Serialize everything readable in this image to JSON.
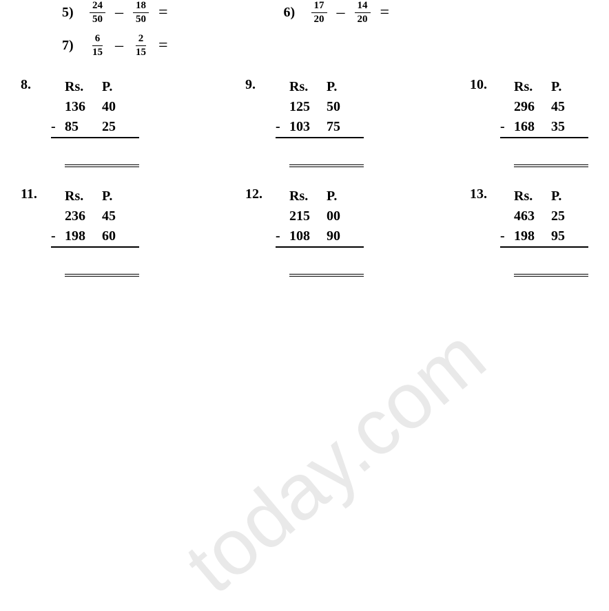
{
  "fraction_problems": {
    "row1": {
      "left": {
        "num": "5)",
        "a_num": "24",
        "a_den": "50",
        "b_num": "18",
        "b_den": "50"
      },
      "right": {
        "num": "6)",
        "a_num": "17",
        "a_den": "20",
        "b_num": "14",
        "b_den": "20"
      }
    },
    "row2": {
      "left": {
        "num": "7)",
        "a_num": "6",
        "a_den": "15",
        "b_num": "2",
        "b_den": "15"
      }
    }
  },
  "money_problems": {
    "headers": {
      "rs": "Rs.",
      "p": "P."
    },
    "row1": [
      {
        "num": "8.",
        "a_rs": "136",
        "a_p": "40",
        "b_rs": "85",
        "b_p": "25"
      },
      {
        "num": "9.",
        "a_rs": "125",
        "a_p": "50",
        "b_rs": "103",
        "b_p": "75"
      },
      {
        "num": "10.",
        "a_rs": "296",
        "a_p": "45",
        "b_rs": "168",
        "b_p": "35"
      }
    ],
    "row2": [
      {
        "num": "11.",
        "a_rs": "236",
        "a_p": "45",
        "b_rs": "198",
        "b_p": "60"
      },
      {
        "num": "12.",
        "a_rs": "215",
        "a_p": "00",
        "b_rs": "108",
        "b_p": "90"
      },
      {
        "num": "13.",
        "a_rs": "463",
        "a_p": "25",
        "b_rs": "198",
        "b_p": "95"
      }
    ]
  },
  "symbols": {
    "minus": "–",
    "minus_money": "-",
    "eq": "="
  },
  "watermark": "today.com",
  "colors": {
    "text": "#000000",
    "bg": "#ffffff",
    "watermark": "#e9e9e9"
  }
}
